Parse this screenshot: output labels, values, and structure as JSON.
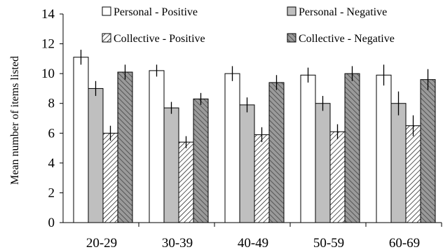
{
  "chart_data": {
    "type": "bar",
    "ylabel": "Mean number of items listed",
    "xlabel": "",
    "ylim": [
      0,
      14
    ],
    "yticks": [
      0,
      2,
      4,
      6,
      8,
      10,
      12,
      14
    ],
    "categories": [
      "20-29",
      "30-39",
      "40-49",
      "50-59",
      "60-69"
    ],
    "legend_position": "top",
    "grid": false,
    "series": [
      {
        "name": "Personal - Positive",
        "values": [
          11.1,
          10.2,
          10.0,
          9.9,
          9.9
        ],
        "errors": [
          0.5,
          0.4,
          0.5,
          0.5,
          0.7
        ],
        "fill": "#ffffff",
        "pattern": "none"
      },
      {
        "name": "Personal - Negative",
        "values": [
          9.0,
          7.7,
          7.9,
          8.0,
          8.0
        ],
        "errors": [
          0.5,
          0.4,
          0.5,
          0.5,
          0.8
        ],
        "fill": "#bfbfbf",
        "pattern": "none"
      },
      {
        "name": "Collective - Positive",
        "values": [
          6.0,
          5.4,
          5.9,
          6.1,
          6.5
        ],
        "errors": [
          0.5,
          0.4,
          0.5,
          0.5,
          0.7
        ],
        "fill": "#ffffff",
        "pattern": "light-diagonal"
      },
      {
        "name": "Collective - Negative",
        "values": [
          10.1,
          8.3,
          9.4,
          10.0,
          9.6
        ],
        "errors": [
          0.5,
          0.4,
          0.5,
          0.5,
          0.7
        ],
        "fill": "#a6a6a6",
        "pattern": "dark-diagonal"
      }
    ]
  }
}
